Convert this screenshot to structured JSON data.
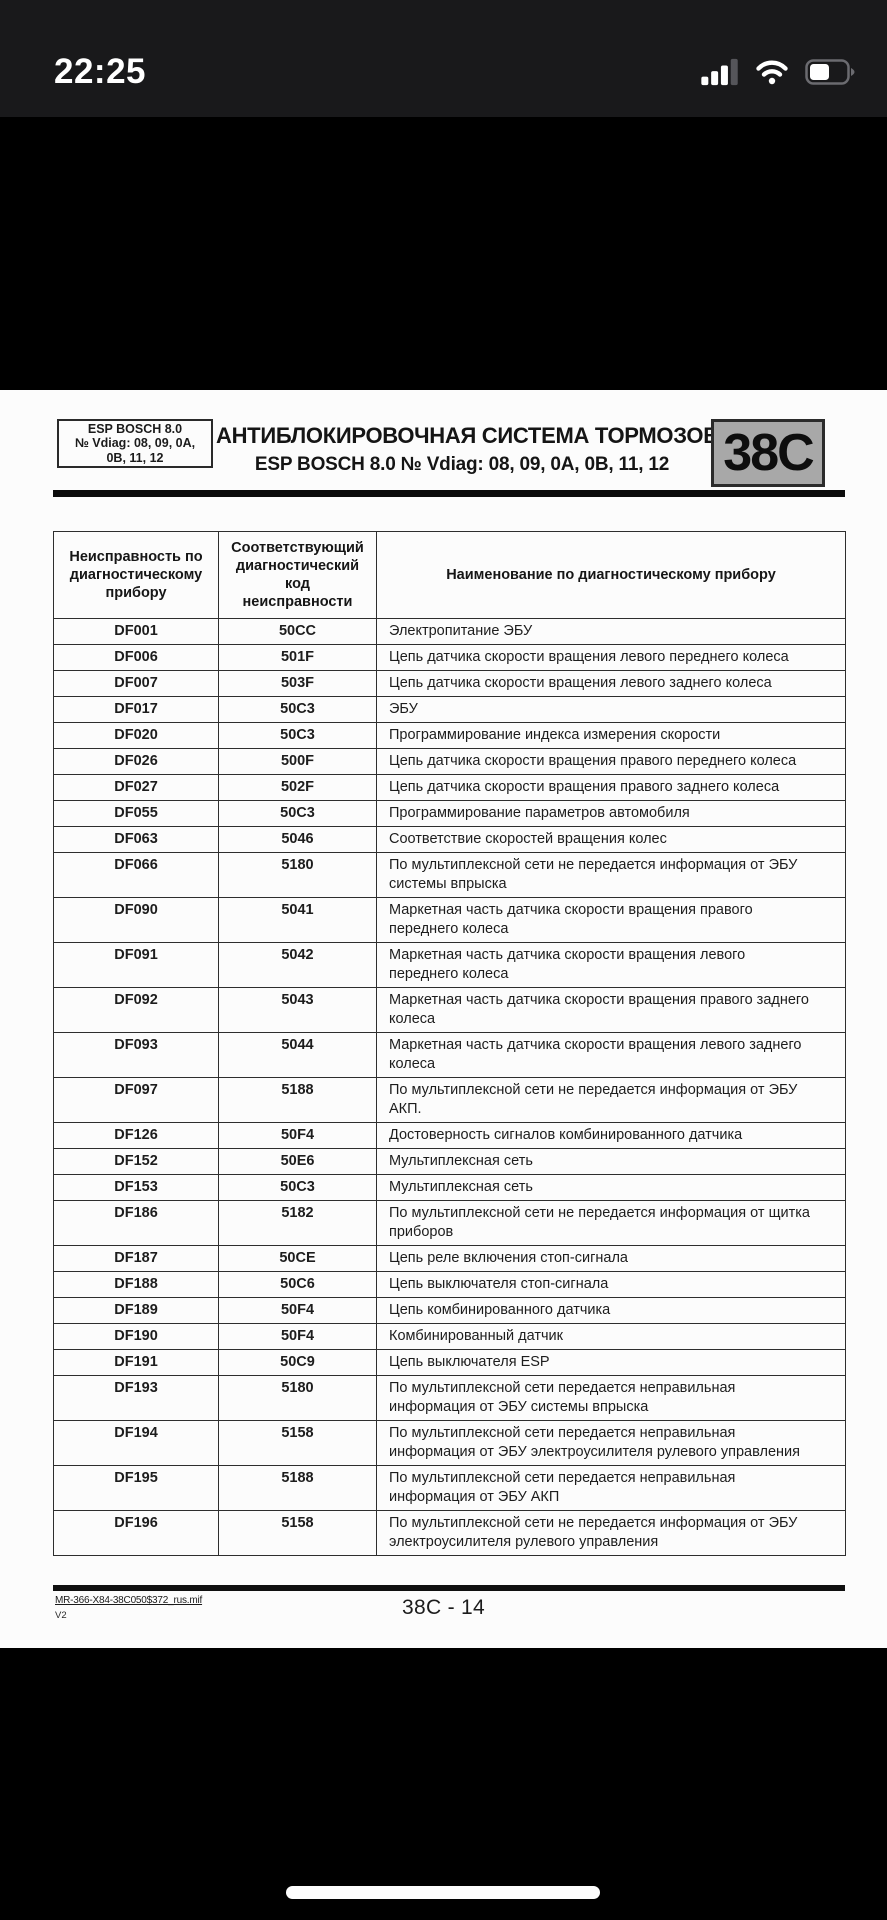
{
  "status_bar": {
    "time": "22:25",
    "signal_icon": "cellular-signal",
    "signal_bars_filled": 3,
    "signal_bars_total": 4,
    "wifi_icon": "wifi",
    "battery_icon": "battery",
    "battery_percent": 52
  },
  "page": {
    "header": {
      "badge_text": "ESP BOSCH 8.0\n№ Vdiag: 08, 09, 0A,\n0B, 11, 12",
      "title_line1": "АНТИБЛОКИРОВОЧНАЯ СИСТЕМА ТОРМОЗОВ",
      "title_line2": "ESP BOSCH 8.0 № Vdiag: 08, 09, 0A, 0B, 11, 12",
      "section_code": "38C",
      "section_plate_bg": "#a8a8a8"
    },
    "table": {
      "headers": [
        "Неисправность по\nдиагностическому\nприбору",
        "Соответствующий\nдиагностический\nкод\nнеисправности",
        "Наименование по диагностическому прибору"
      ],
      "rows": [
        [
          "DF001",
          "50CC",
          "Электропитание ЭБУ"
        ],
        [
          "DF006",
          "501F",
          "Цепь датчика скорости вращения левого переднего колеса"
        ],
        [
          "DF007",
          "503F",
          "Цепь датчика скорости вращения левого заднего колеса"
        ],
        [
          "DF017",
          "50C3",
          "ЭБУ"
        ],
        [
          "DF020",
          "50C3",
          "Программирование индекса измерения скорости"
        ],
        [
          "DF026",
          "500F",
          "Цепь датчика скорости вращения правого переднего колеса"
        ],
        [
          "DF027",
          "502F",
          "Цепь датчика скорости вращения правого заднего колеса"
        ],
        [
          "DF055",
          "50C3",
          "Программирование параметров автомобиля"
        ],
        [
          "DF063",
          "5046",
          "Соответствие скоростей вращения колес"
        ],
        [
          "DF066",
          "5180",
          "По мультиплексной сети не передается информация от ЭБУ\nсистемы впрыска"
        ],
        [
          "DF090",
          "5041",
          "Маркетная часть датчика скорости вращения правого\nпереднего колеса"
        ],
        [
          "DF091",
          "5042",
          "Маркетная часть датчика скорости вращения левого\nпереднего колеса"
        ],
        [
          "DF092",
          "5043",
          "Маркетная часть датчика скорости вращения правого заднего\nколеса"
        ],
        [
          "DF093",
          "5044",
          "Маркетная часть датчика скорости вращения левого заднего\nколеса"
        ],
        [
          "DF097",
          "5188",
          "По мультиплексной сети не передается информация от ЭБУ\nАКП."
        ],
        [
          "DF126",
          "50F4",
          "Достоверность сигналов комбинированного датчика"
        ],
        [
          "DF152",
          "50E6",
          "Мультиплексная сеть"
        ],
        [
          "DF153",
          "50C3",
          "Мультиплексная сеть"
        ],
        [
          "DF186",
          "5182",
          "По мультиплексной сети не передается информация от щитка\nприборов"
        ],
        [
          "DF187",
          "50CE",
          "Цепь реле включения стоп-сигнала"
        ],
        [
          "DF188",
          "50C6",
          "Цепь выключателя стоп-сигнала"
        ],
        [
          "DF189",
          "50F4",
          "Цепь комбинированного датчика"
        ],
        [
          "DF190",
          "50F4",
          "Комбинированный датчик"
        ],
        [
          "DF191",
          "50C9",
          "Цепь выключателя ESP"
        ],
        [
          "DF193",
          "5180",
          "По мультиплексной сети передается неправильная\nинформация от ЭБУ системы впрыска"
        ],
        [
          "DF194",
          "5158",
          "По мультиплексной сети передается неправильная\nинформация от ЭБУ электроусилителя рулевого управления"
        ],
        [
          "DF195",
          "5188",
          "По мультиплексной сети передается неправильная\nинформация от ЭБУ АКП"
        ],
        [
          "DF196",
          "5158",
          "По мультиплексной сети не передается информация от ЭБУ\nэлектроусилителя рулевого управления"
        ]
      ]
    },
    "footer": {
      "file_ref": "MR-366-X84-38C050$372_rus.mif",
      "version": "V2",
      "page_number": "38C - 14"
    }
  }
}
